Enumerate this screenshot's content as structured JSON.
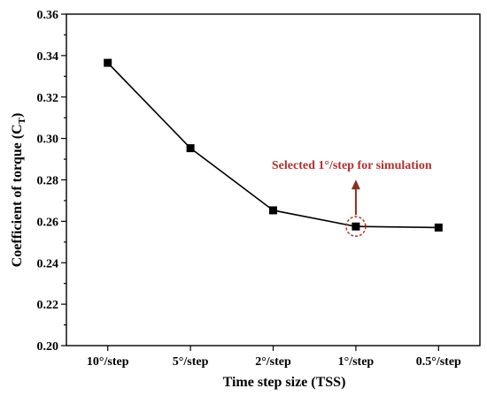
{
  "chart_data": {
    "type": "line",
    "title": "",
    "xlabel": "Time step size (TSS)",
    "ylabel_main": "Coefficient of torque (C",
    "ylabel_sub": "T",
    "ylabel_close": ")",
    "categories": [
      "10°/step",
      "5°/step",
      "2°/step",
      "1°/step",
      "0.5°/step"
    ],
    "series": [
      {
        "values": [
          0.3365,
          0.2953,
          0.2653,
          0.2575,
          0.257
        ]
      }
    ],
    "ylim": [
      0.2,
      0.36
    ],
    "yticks": [
      0.2,
      0.22,
      0.24,
      0.26,
      0.28,
      0.3,
      0.32,
      0.34,
      0.36
    ],
    "ytick_labels": [
      "0.20",
      "0.22",
      "0.24",
      "0.26",
      "0.28",
      "0.30",
      "0.32",
      "0.34",
      "0.36"
    ],
    "grid": false,
    "annotation": {
      "text": "Selected 1°/step for simulation",
      "category_index": 3,
      "color": "#b03030"
    },
    "colors": {
      "series": "#000000",
      "annotation_circle": "#c0392b",
      "arrow": "#8b2e1a"
    }
  }
}
